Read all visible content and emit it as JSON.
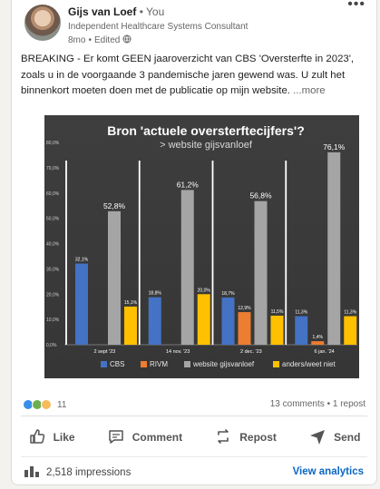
{
  "post": {
    "author": "Gijs van Loef",
    "separator": "•",
    "relation": "You",
    "headline": "Independent Healthcare Systems Consultant",
    "age": "8mo",
    "edited": "Edited",
    "text": "BREAKING - Er komt GEEN jaaroverzicht van CBS 'Oversterfte in 2023', zoals u in de voorgaande 3 pandemische jaren gewend was. U zult het binnenkort moeten doen met de publicatie op mijn website.",
    "see_more": "...more"
  },
  "chart_data": {
    "type": "bar",
    "title": "Bron 'actuele oversterftecijfers'?",
    "subtitle": "> website gijsvanloef",
    "categories": [
      "2 sept '23",
      "14 nov. '23",
      "2 dec. '23",
      "6 jan. '24"
    ],
    "yticks": [
      "0,0%",
      "10,0%",
      "20,0%",
      "30,0%",
      "40,0%",
      "50,0%",
      "60,0%",
      "70,0%",
      "80,0%"
    ],
    "ylim": [
      0,
      80
    ],
    "legend_position": "bottom",
    "series": [
      {
        "name": "CBS",
        "color": "#4472c4",
        "values": [
          32.1,
          18.8,
          18.7,
          11.3
        ],
        "labels": [
          "32,1%",
          "18,8%",
          "18,7%",
          "11,3%"
        ]
      },
      {
        "name": "RIVM",
        "color": "#ed7d31",
        "values": [
          null,
          null,
          12.9,
          1.4
        ],
        "labels": [
          "",
          "",
          "12,9%",
          "1,4%"
        ]
      },
      {
        "name": "website gijsvanloef",
        "color": "#a5a5a5",
        "values": [
          52.8,
          61.2,
          56.8,
          76.1
        ],
        "labels": [
          "52,8%",
          "61,2%",
          "56,8%",
          "76,1%"
        ]
      },
      {
        "name": "anders/weet niet",
        "color": "#ffc000",
        "values": [
          15.1,
          20.0,
          11.5,
          11.3
        ],
        "labels": [
          "15,1%",
          "20,0%",
          "11,5%",
          "11,3%"
        ]
      }
    ]
  },
  "social": {
    "reactions_count": "11",
    "comments": "13 comments",
    "dot": "•",
    "reposts": "1 repost"
  },
  "actions": {
    "like": "Like",
    "comment": "Comment",
    "repost": "Repost",
    "send": "Send"
  },
  "footer": {
    "impressions": "2,518 impressions",
    "analytics": "View analytics"
  }
}
